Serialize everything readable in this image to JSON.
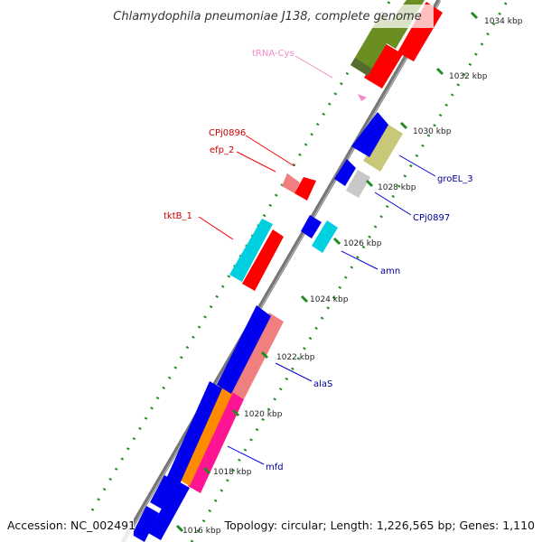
{
  "title": "Chlamydophila pneumoniae J138, complete genome",
  "footer": {
    "accession": "Accession: NC_002491",
    "stats": "Topology: circular; Length: 1,226,565 bp; Genes: 1,110"
  },
  "ticks": [
    "1016 kbp",
    "1018 kbp",
    "1020 kbp",
    "1022 kbp",
    "1024 kbp",
    "1026 kbp",
    "1028 kbp",
    "1030 kbp",
    "1032 kbp",
    "1034 kbp"
  ],
  "genes": [
    {
      "name": "tRNA-Cys",
      "color": "#f08cc8"
    },
    {
      "name": "CPj0896",
      "color": "#cc0000"
    },
    {
      "name": "efp_2",
      "color": "#cc0000"
    },
    {
      "name": "tktB_1",
      "color": "#cc0000"
    },
    {
      "name": "groEL_3",
      "color": "#000099"
    },
    {
      "name": "CPj0897",
      "color": "#000099"
    },
    {
      "name": "amn",
      "color": "#000099"
    },
    {
      "name": "alaS",
      "color": "#000099"
    },
    {
      "name": "mfd",
      "color": "#000099"
    }
  ],
  "colors": {
    "forward_gene": "#ff0000",
    "reverse_gene": "#0000ee",
    "backbone": "#777777",
    "dotted_track": "#228b22",
    "gc_positive": "#6b8e23",
    "gc_light": "#f08080",
    "cyan": "#00cfe0",
    "olive_light": "#c8c878",
    "gray_gene": "#c8c8c8",
    "orange": "#ff8c00",
    "magenta": "#ff1493"
  }
}
